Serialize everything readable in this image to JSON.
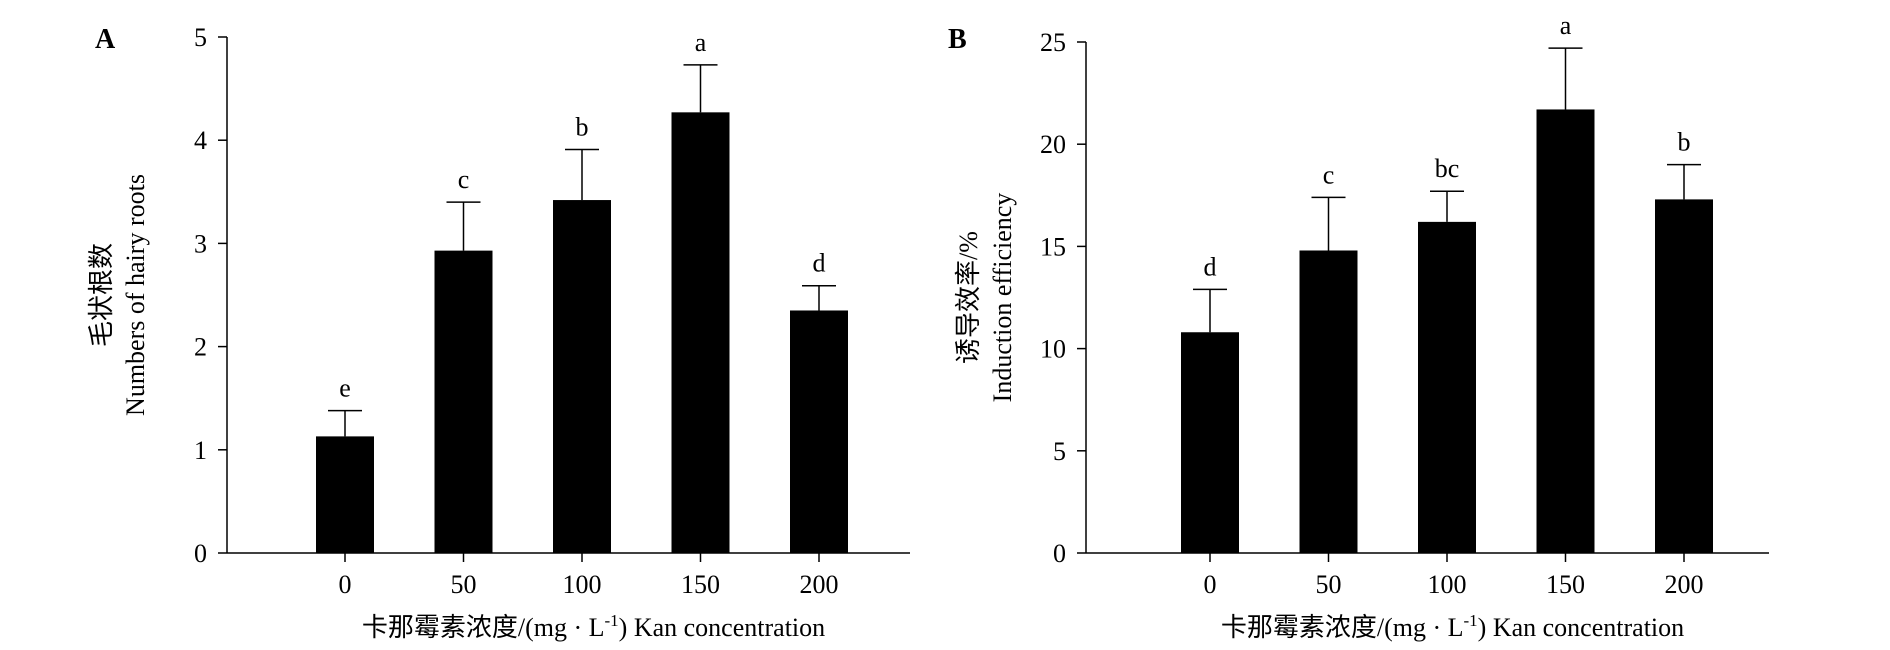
{
  "chart_data": [
    {
      "type": "bar",
      "panel_label": "A",
      "categories": [
        "0",
        "50",
        "100",
        "150",
        "200"
      ],
      "values": [
        1.13,
        2.93,
        3.42,
        4.27,
        2.35
      ],
      "errors": [
        0.25,
        0.47,
        0.49,
        0.46,
        0.24
      ],
      "significance": [
        "e",
        "c",
        "b",
        "a",
        "d"
      ],
      "yticks": [
        0,
        1,
        2,
        3,
        4,
        5
      ],
      "ylim": [
        0,
        5
      ],
      "ylabel_cn": "毛状根数",
      "ylabel_en": "Numbers of hairy roots",
      "xlabel_cn": "卡那霉素浓度/(mg · L",
      "xlabel_sup": "-1",
      "xlabel_en": ")  Kan concentration",
      "bar_color": "#000000"
    },
    {
      "type": "bar",
      "panel_label": "B",
      "categories": [
        "0",
        "50",
        "100",
        "150",
        "200"
      ],
      "values": [
        10.8,
        14.8,
        16.2,
        21.7,
        17.3
      ],
      "errors": [
        2.1,
        2.6,
        1.5,
        3.0,
        1.7
      ],
      "significance": [
        "d",
        "c",
        "bc",
        "a",
        "b"
      ],
      "yticks": [
        0,
        5,
        10,
        15,
        20,
        25
      ],
      "ylim": [
        0,
        25
      ],
      "ylabel_cn": "诱导效率/%",
      "ylabel_en": "Induction efficiency",
      "xlabel_cn": "卡那霉素浓度/(mg · L",
      "xlabel_sup": "-1",
      "xlabel_en": ")  Kan concentration",
      "bar_color": "#000000"
    }
  ]
}
